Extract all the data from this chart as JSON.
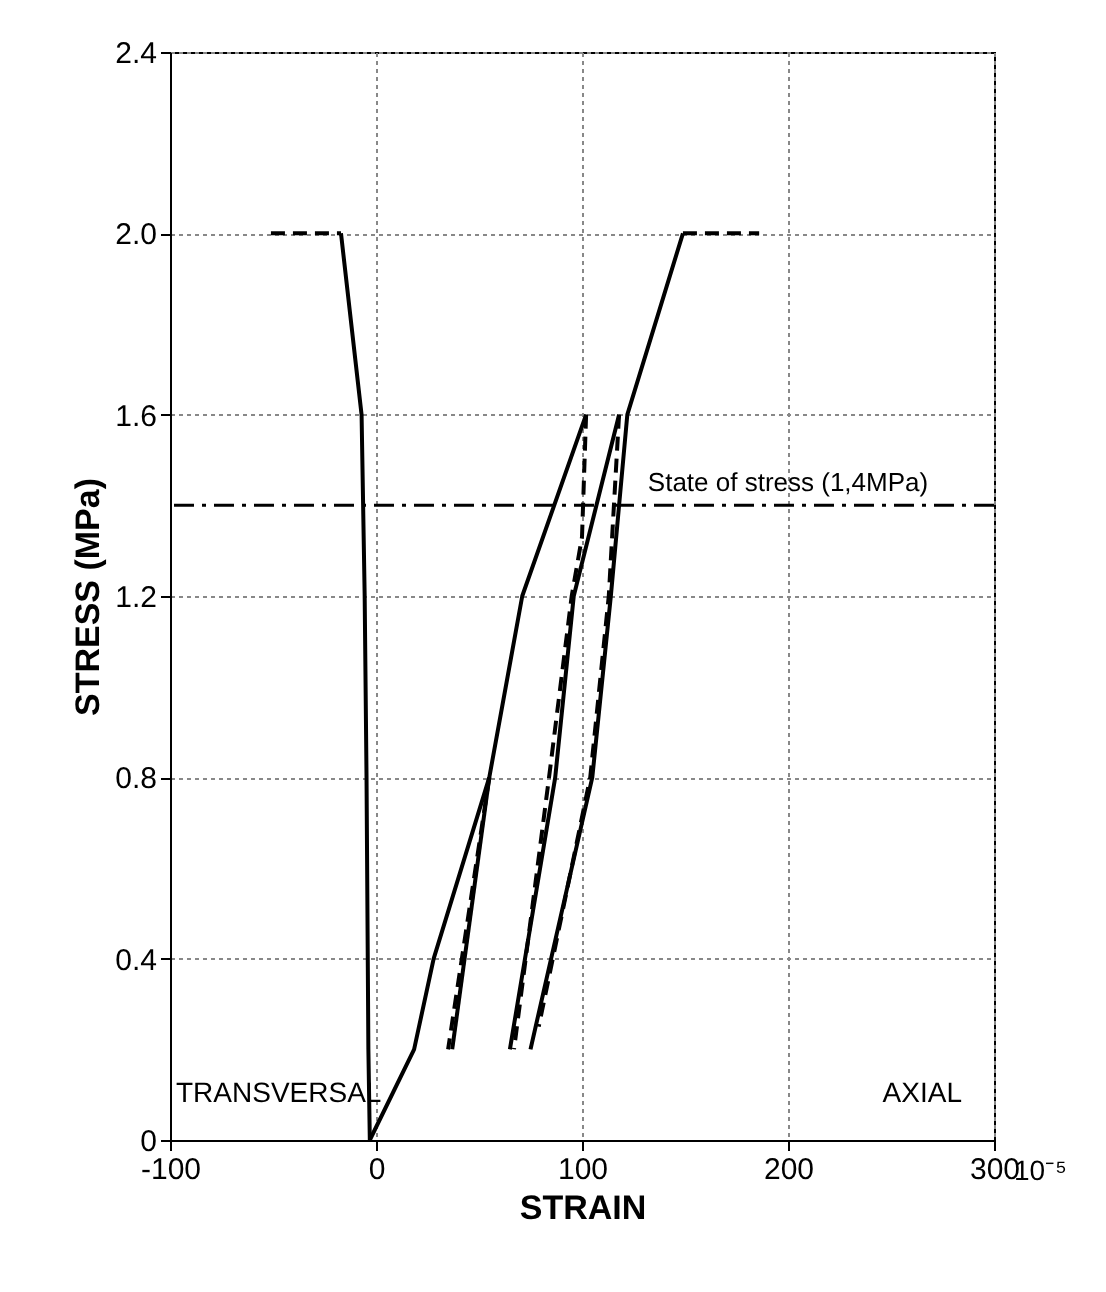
{
  "chart_data": {
    "type": "line",
    "xlabel": "STRAIN",
    "ylabel": "STRESS (MPa)",
    "xlim": [
      -100,
      300
    ],
    "ylim": [
      0,
      2.4
    ],
    "xticks": [
      -100,
      0,
      100,
      200,
      300
    ],
    "yticks": [
      0,
      0.4,
      0.8,
      1.2,
      1.6,
      {
        "value": 2,
        "label": "2.0"
      },
      2.4
    ],
    "grid": true,
    "marker": "none",
    "series": [
      {
        "color": "#000000",
        "line_style": "solid",
        "x": [
          -17,
          -7,
          -5.5,
          -4.6,
          -3.7,
          -3
        ],
        "values": [
          2.0,
          1.6,
          1.2,
          0.8,
          0.2,
          0
        ]
      },
      {
        "color": "#000000",
        "line_style": "dashed",
        "x": [
          -51,
          -17
        ],
        "values": [
          2.0,
          2.0
        ]
      },
      {
        "color": "#000000",
        "line_style": "solid",
        "x": [
          -3,
          18.5,
          28,
          55,
          71,
          102
        ],
        "values": [
          0,
          0.2,
          0.4,
          0.8,
          1.2,
          1.6
        ]
      },
      {
        "color": "#000000",
        "line_style": "dashed",
        "x": [
          55,
          35
        ],
        "values": [
          0.8,
          0.2
        ]
      },
      {
        "color": "#000000",
        "line_style": "solid",
        "x": [
          37,
          55
        ],
        "values": [
          0.2,
          0.8
        ]
      },
      {
        "color": "#000000",
        "line_style": "dashed",
        "x": [
          102,
          100,
          95,
          84,
          67
        ],
        "values": [
          1.6,
          1.33,
          1.2,
          0.8,
          0.2
        ]
      },
      {
        "color": "#000000",
        "line_style": "solid",
        "x": [
          65,
          87,
          96,
          118
        ],
        "values": [
          0.2,
          0.8,
          1.2,
          1.6
        ]
      },
      {
        "color": "#000000",
        "line_style": "dashed",
        "x": [
          118,
          113,
          104,
          79
        ],
        "values": [
          1.6,
          1.2,
          0.8,
          0.25
        ]
      },
      {
        "color": "#000000",
        "line_style": "solid",
        "x": [
          75,
          105,
          114,
          122,
          149
        ],
        "values": [
          0.2,
          0.8,
          1.2,
          1.6,
          2.0
        ]
      },
      {
        "color": "#000000",
        "line_style": "dashed",
        "x": [
          149,
          186
        ],
        "values": [
          2.0,
          2.0
        ]
      }
    ],
    "ref_lines": [
      {
        "axis": "y",
        "value": 1.4,
        "label": "State of stress (1,4MPa)",
        "line_style": "dashed",
        "color": "#000000"
      }
    ],
    "annotations": [
      "TRANSVERSAL",
      "AXIAL",
      "10⁻⁵"
    ]
  }
}
